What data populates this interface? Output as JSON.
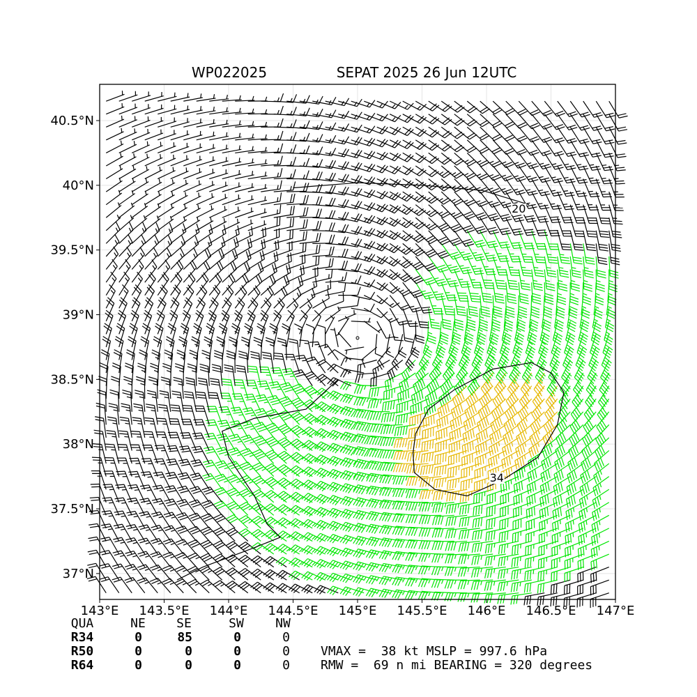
{
  "chart_data": {
    "type": "wind_barb_map",
    "title": "WP022025",
    "subtitle": "SEPAT 2025 26 Jun 12UTC",
    "xlabel": "",
    "ylabel": "",
    "xlim": [
      143.0,
      147.0
    ],
    "ylim": [
      36.8,
      40.78
    ],
    "x_ticks": [
      143.0,
      143.5,
      144.0,
      144.5,
      145.0,
      145.5,
      146.0,
      146.5,
      147.0
    ],
    "x_tick_labels": [
      "143°E",
      "143.5°E",
      "144°E",
      "144.5°E",
      "145°E",
      "145.5°E",
      "146°E",
      "146.5°E",
      "147°E"
    ],
    "y_ticks": [
      37.0,
      37.5,
      38.0,
      38.5,
      39.0,
      39.5,
      40.0,
      40.5
    ],
    "y_tick_labels": [
      "37°N",
      "37.5°N",
      "38°N",
      "38.5°N",
      "39°N",
      "39.5°N",
      "40°N",
      "40.5°N"
    ],
    "grid": true,
    "storm_center": {
      "lon": 145.0,
      "lat": 38.82
    },
    "colors": {
      "below34": "#000000",
      "gale34": "#00e600",
      "storm50": "#e6b800"
    },
    "contours": [
      {
        "level": "20",
        "points": [
          [
            146.33,
            39.85
          ],
          [
            145.97,
            39.96
          ],
          [
            145.5,
            40.0
          ],
          [
            145.0,
            40.02
          ],
          [
            144.5,
            39.98
          ]
        ]
      },
      {
        "level": "34",
        "points": [
          [
            145.45,
            38.08
          ],
          [
            145.55,
            38.27
          ],
          [
            145.75,
            38.42
          ],
          [
            146.05,
            38.58
          ],
          [
            146.35,
            38.63
          ],
          [
            146.5,
            38.55
          ],
          [
            146.6,
            38.4
          ],
          [
            146.55,
            38.15
          ],
          [
            146.4,
            37.9
          ],
          [
            146.12,
            37.72
          ],
          [
            145.85,
            37.6
          ],
          [
            145.6,
            37.65
          ],
          [
            145.44,
            37.78
          ],
          [
            145.43,
            37.93
          ],
          [
            145.45,
            38.08
          ]
        ]
      },
      {
        "level": "",
        "points": [
          [
            144.85,
            38.5
          ],
          [
            144.6,
            38.27
          ],
          [
            144.2,
            38.2
          ],
          [
            143.95,
            38.1
          ],
          [
            144.0,
            37.9
          ],
          [
            144.2,
            37.6
          ],
          [
            144.3,
            37.38
          ],
          [
            144.4,
            37.28
          ],
          [
            144.2,
            37.2
          ],
          [
            143.8,
            37.05
          ],
          [
            143.6,
            36.95
          ]
        ]
      }
    ],
    "contour_labels": [
      {
        "text": "20",
        "lon": 146.25,
        "lat": 39.8
      },
      {
        "text": "34",
        "lon": 146.08,
        "lat": 37.72
      }
    ]
  },
  "radii": {
    "header": [
      "QUA",
      "NE",
      "SE",
      "SW",
      "NW"
    ],
    "rows": [
      {
        "label": "R34",
        "values": [
          "0",
          "85",
          "0",
          "0"
        ]
      },
      {
        "label": "R50",
        "values": [
          "0",
          "0",
          "0",
          "0"
        ]
      },
      {
        "label": "R64",
        "values": [
          "0",
          "0",
          "0",
          "0"
        ]
      }
    ]
  },
  "summary": {
    "line1": "VMAX =  38 kt MSLP = 997.6 hPa",
    "line2": "RMW =  69 n mi BEARING = 320 degrees"
  }
}
